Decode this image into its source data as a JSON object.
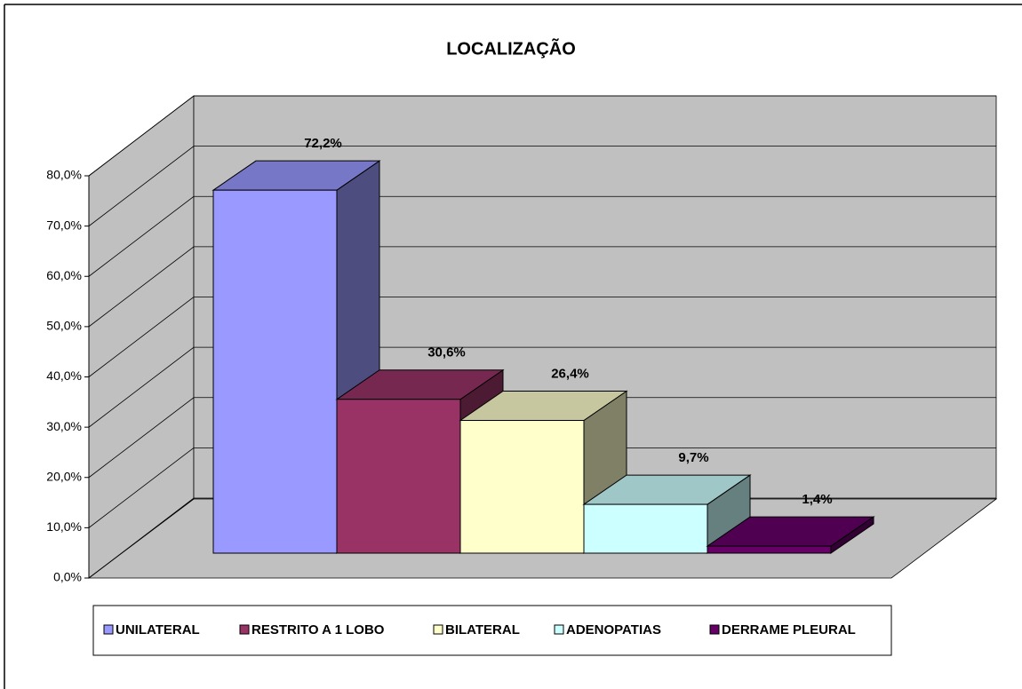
{
  "chart_data": {
    "type": "bar3d",
    "title": "LOCALIZAÇÃO",
    "series": [
      {
        "name": "UNILATERAL",
        "color": "#9999ff",
        "values": [
          72.2
        ],
        "value_labels": [
          "72,2%"
        ]
      },
      {
        "name": "RESTRITO A 1 LOBO",
        "color": "#993366",
        "values": [
          30.6
        ],
        "value_labels": [
          "30,6%"
        ]
      },
      {
        "name": "BILATERAL",
        "color": "#ffffcc",
        "values": [
          26.4
        ],
        "value_labels": [
          "26,4%"
        ]
      },
      {
        "name": "ADENOPATIAS",
        "color": "#ccffff",
        "values": [
          9.7
        ],
        "value_labels": [
          "9,7%"
        ]
      },
      {
        "name": "DERRAME PLEURAL",
        "color": "#660066",
        "values": [
          1.4
        ],
        "value_labels": [
          "1,4%"
        ]
      }
    ],
    "ylim": [
      0,
      80
    ],
    "yticks": [
      {
        "value": 0,
        "label": "0,0%"
      },
      {
        "value": 10,
        "label": "10,0%"
      },
      {
        "value": 20,
        "label": "20,0%"
      },
      {
        "value": 30,
        "label": "30,0%"
      },
      {
        "value": 40,
        "label": "40,0%"
      },
      {
        "value": 50,
        "label": "50,0%"
      },
      {
        "value": 60,
        "label": "60,0%"
      },
      {
        "value": 70,
        "label": "70,0%"
      },
      {
        "value": 80,
        "label": "80,0%"
      }
    ],
    "grid": true,
    "legend": "bottom"
  }
}
